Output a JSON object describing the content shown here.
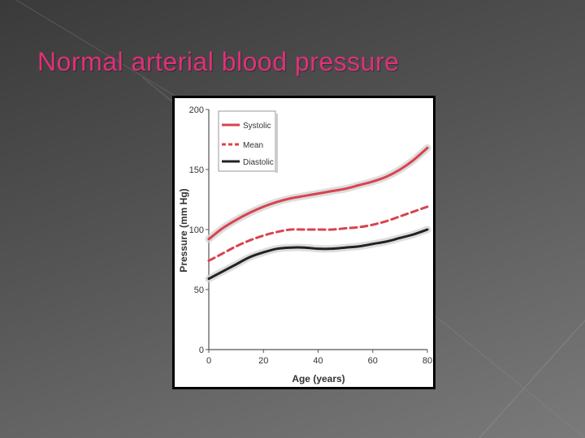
{
  "slide": {
    "title": "Normal arterial blood pressure"
  },
  "chart_data": {
    "type": "line",
    "title": "",
    "xlabel": "Age (years)",
    "ylabel": "Pressure (mm Hg)",
    "xlim": [
      0,
      80
    ],
    "ylim": [
      0,
      200
    ],
    "x_ticks": [
      "0",
      "20",
      "40",
      "60",
      "80"
    ],
    "y_ticks": [
      "0",
      "50",
      "100",
      "150",
      "200"
    ],
    "grid": false,
    "legend_position": "top-left",
    "series": [
      {
        "name": "Systolic",
        "color": "#d9434f",
        "style": "solid",
        "x": [
          0,
          5,
          10,
          15,
          20,
          25,
          30,
          35,
          40,
          45,
          50,
          55,
          60,
          65,
          70,
          75,
          80
        ],
        "y": [
          92,
          101,
          108,
          114,
          119,
          123,
          126,
          128,
          130,
          132,
          134,
          137,
          140,
          144,
          150,
          158,
          168
        ]
      },
      {
        "name": "Mean",
        "color": "#d9434f",
        "style": "dashed",
        "x": [
          0,
          5,
          10,
          15,
          20,
          25,
          30,
          35,
          40,
          45,
          50,
          55,
          60,
          65,
          70,
          75,
          80
        ],
        "y": [
          74,
          80,
          86,
          91,
          95,
          98,
          100,
          100,
          100,
          100,
          101,
          102,
          104,
          107,
          111,
          115,
          119
        ]
      },
      {
        "name": "Diastolic",
        "color": "#222222",
        "style": "solid",
        "x": [
          0,
          5,
          10,
          15,
          20,
          25,
          30,
          35,
          40,
          45,
          50,
          55,
          60,
          65,
          70,
          75,
          80
        ],
        "y": [
          59,
          65,
          71,
          77,
          81,
          84,
          85,
          85,
          84,
          84,
          85,
          86,
          88,
          90,
          93,
          96,
          100
        ]
      }
    ]
  }
}
